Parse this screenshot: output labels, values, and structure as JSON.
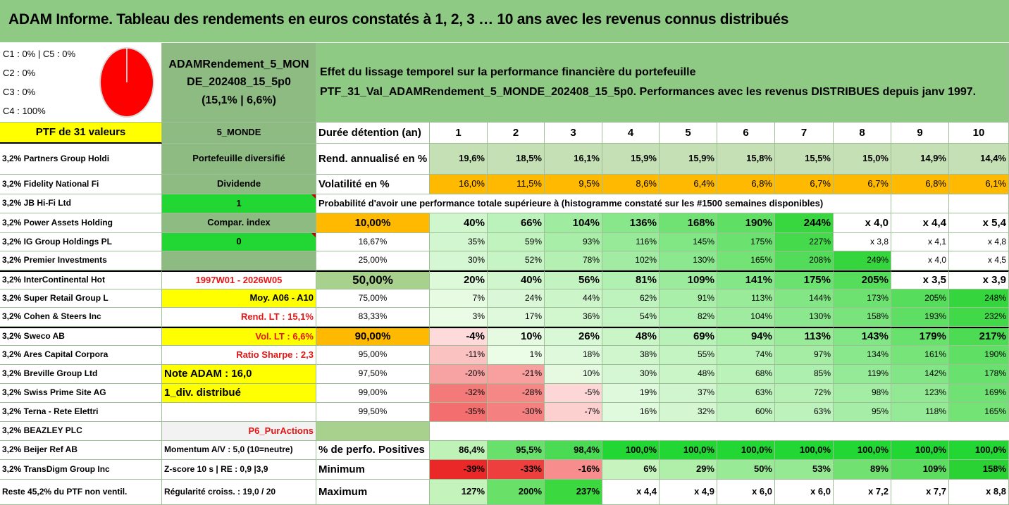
{
  "title": "ADAM Informe. Tableau des rendements en euros constatés à 1, 2, 3 … 10 ans avec les revenus connus distribués",
  "legend": [
    "C1 : 0% | C5 : 0%",
    "C2 : 0%",
    "C3 : 0%",
    "C4 : 100%"
  ],
  "fund": {
    "line1": "ADAMRendement_5_MON",
    "line2": "DE_202408_15_5p0",
    "line3": "(15,1% | 6,6%)"
  },
  "effect": {
    "line1": "Effet du lissage temporel sur la performance financière du portefeuille",
    "line2": "PTF_31_Val_ADAMRendement_5_MONDE_202408_15_5p0. Performances avec les revenus DISTRIBUES depuis janv 1997."
  },
  "ptf_header": "PTF de 31 valeurs",
  "mid_header": "5_MONDE",
  "years_label": "Durée détention (an)",
  "years": [
    "1",
    "2",
    "3",
    "4",
    "5",
    "6",
    "7",
    "8",
    "9",
    "10"
  ],
  "holdings": [
    "3,2% Partners Group Holdi",
    "3,2% Fidelity National Fi",
    "3,2% JB Hi-Fi Ltd",
    "3,2% Power Assets Holding",
    "3,2% IG Group Holdings PL",
    "3,2% Premier Investments",
    "3,2% InterContinental Hot",
    "3,2% Super Retail Group L",
    "3,2% Cohen & Steers Inc",
    "3,2% Sweco AB",
    "3,2% Ares Capital Corpora",
    "3,2% Breville Group Ltd",
    "3,2% Swiss Prime Site AG",
    "3,2% Terna - Rete Elettri",
    "3,2% BEAZLEY PLC",
    "3,2% Beijer Ref AB",
    "3,2% TransDigm Group Inc",
    "Reste 45,2% du PTF non ventil."
  ],
  "info": [
    "Portefeuille diversifié",
    "Dividende",
    "1",
    "Compar. index",
    "0",
    "",
    "1997W01 - 2026W05",
    "Moy. A06 - A10",
    "Rend. LT : 15,1%",
    "Vol. LT : 6,6%",
    "Ratio Sharpe : 2,3",
    "Note ADAM : 16,0",
    "1_div. distribué",
    "",
    "P6_PurActions",
    "Momentum A/V : 5,0 (10=neutre)",
    "Z-score 10 s | RE : 0,9 |3,9",
    "Régularité croiss. : 19,0 / 20"
  ],
  "rend": {
    "label": "Rend. annualisé en %",
    "values": [
      "19,6%",
      "18,5%",
      "16,1%",
      "15,9%",
      "15,9%",
      "15,8%",
      "15,5%",
      "15,0%",
      "14,9%",
      "14,4%"
    ]
  },
  "vol": {
    "label": "Volatilité en %",
    "values": [
      "16,0%",
      "11,5%",
      "9,5%",
      "8,6%",
      "6,4%",
      "6,8%",
      "6,7%",
      "6,7%",
      "6,8%",
      "6,1%"
    ]
  },
  "prob_header": "Probabilité d'avoir une performance totale supérieure à (histogramme constaté sur les #1500 semaines disponibles)",
  "prob_rows": [
    {
      "p": "10,00%",
      "v": [
        "40%",
        "66%",
        "104%",
        "136%",
        "168%",
        "190%",
        "244%",
        "x 4,0",
        "x 4,4",
        "x 5,4"
      ]
    },
    {
      "p": "16,67%",
      "v": [
        "35%",
        "59%",
        "93%",
        "116%",
        "145%",
        "175%",
        "227%",
        "x 3,8",
        "x 4,1",
        "x 4,8"
      ]
    },
    {
      "p": "25,00%",
      "v": [
        "30%",
        "52%",
        "78%",
        "102%",
        "130%",
        "165%",
        "208%",
        "249%",
        "x 4,0",
        "x 4,5"
      ]
    },
    {
      "p": "50,00%",
      "v": [
        "20%",
        "40%",
        "56%",
        "81%",
        "109%",
        "141%",
        "175%",
        "205%",
        "x 3,5",
        "x 3,9"
      ]
    },
    {
      "p": "75,00%",
      "v": [
        "7%",
        "24%",
        "44%",
        "62%",
        "91%",
        "113%",
        "144%",
        "173%",
        "205%",
        "248%"
      ]
    },
    {
      "p": "83,33%",
      "v": [
        "3%",
        "17%",
        "36%",
        "54%",
        "82%",
        "104%",
        "130%",
        "158%",
        "193%",
        "232%"
      ]
    },
    {
      "p": "90,00%",
      "v": [
        "-4%",
        "10%",
        "26%",
        "48%",
        "69%",
        "94%",
        "113%",
        "143%",
        "179%",
        "217%"
      ]
    },
    {
      "p": "95,00%",
      "v": [
        "-11%",
        "1%",
        "18%",
        "38%",
        "55%",
        "74%",
        "97%",
        "134%",
        "161%",
        "190%"
      ]
    },
    {
      "p": "97,50%",
      "v": [
        "-20%",
        "-21%",
        "10%",
        "30%",
        "48%",
        "68%",
        "85%",
        "119%",
        "142%",
        "178%"
      ]
    },
    {
      "p": "99,00%",
      "v": [
        "-32%",
        "-28%",
        "-5%",
        "19%",
        "37%",
        "63%",
        "72%",
        "98%",
        "123%",
        "169%"
      ]
    },
    {
      "p": "99,50%",
      "v": [
        "-35%",
        "-30%",
        "-7%",
        "16%",
        "32%",
        "60%",
        "63%",
        "95%",
        "118%",
        "165%"
      ]
    }
  ],
  "stats": [
    {
      "label": "% de perfo. Positives",
      "v": [
        "86,4%",
        "95,5%",
        "98,4%",
        "100,0%",
        "100,0%",
        "100,0%",
        "100,0%",
        "100,0%",
        "100,0%",
        "100,0%"
      ]
    },
    {
      "label": "Minimum",
      "v": [
        "-39%",
        "-33%",
        "-16%",
        "6%",
        "29%",
        "50%",
        "53%",
        "89%",
        "109%",
        "158%"
      ]
    },
    {
      "label": "Maximum",
      "v": [
        "127%",
        "200%",
        "237%",
        "x 4,4",
        "x 4,9",
        "x 6,0",
        "x 6,0",
        "x 7,2",
        "x 7,7",
        "x 8,8"
      ]
    }
  ],
  "colors": {
    "title_bg": "#8fca84",
    "grey_green": "#8dbb82",
    "yellow": "#ffff00",
    "bright_green": "#22d633",
    "orange": "#ffb900",
    "pie_red": "#ff0000"
  }
}
